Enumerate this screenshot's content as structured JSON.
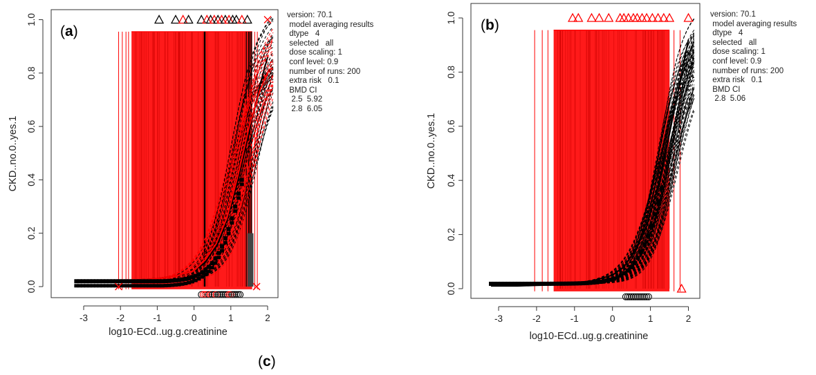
{
  "figure": {
    "panel_c_label": "c"
  },
  "chart_data": [
    {
      "type": "line",
      "panel": "a",
      "xlabel": "log10-ECd..ug.g.creatinine",
      "ylabel": "CKD..no.0..yes.1",
      "xlim": [
        -3.5,
        2.2
      ],
      "ylim": [
        -0.02,
        1.02
      ],
      "xticks": [
        "-3",
        "-2",
        "-1",
        "0",
        "1",
        "2"
      ],
      "yticks": [
        "0.0",
        "0.2",
        "0.4",
        "0.6",
        "0.8",
        "1.0"
      ],
      "series": [
        {
          "color": "#000000",
          "x": [
            -3.2,
            -2.5,
            -2.0,
            -1.5,
            -1.0,
            -0.5,
            0.0,
            0.3,
            0.6,
            0.9,
            1.2,
            1.5,
            1.8,
            2.0
          ],
          "y": [
            0.02,
            0.02,
            0.02,
            0.025,
            0.03,
            0.04,
            0.06,
            0.09,
            0.15,
            0.25,
            0.4,
            0.58,
            0.76,
            0.86
          ]
        },
        {
          "color": "#ff0000",
          "x": [
            -3.2,
            -2.5,
            -2.0,
            -1.5,
            -1.0,
            -0.5,
            0.0,
            0.3,
            0.6,
            0.9,
            1.2,
            1.5,
            1.8,
            2.0
          ],
          "y": [
            0.02,
            0.02,
            0.02,
            0.025,
            0.03,
            0.04,
            0.06,
            0.1,
            0.16,
            0.26,
            0.42,
            0.6,
            0.74,
            0.8
          ]
        }
      ],
      "info": [
        "version: 70.1",
        " model averaging results",
        " dtype   4",
        " selected   all",
        " dose scaling: 1",
        " conf level: 0.9",
        " number of runs: 200",
        " extra risk   0.1",
        " BMD CI",
        "  2.5  5.92",
        "  2.8  6.05"
      ]
    },
    {
      "type": "line",
      "panel": "b",
      "xlabel": "log10-ECd..ug.g.creatinine",
      "ylabel": "CKD..no.0..yes.1",
      "xlim": [
        -3.5,
        2.2
      ],
      "ylim": [
        -0.02,
        1.02
      ],
      "xticks": [
        "-3",
        "-2",
        "-1",
        "0",
        "1",
        "2"
      ],
      "yticks": [
        "0.0",
        "0.2",
        "0.4",
        "0.6",
        "0.8",
        "1.0"
      ],
      "series": [
        {
          "color": "#000000",
          "x": [
            -3.2,
            -2.5,
            -2.0,
            -1.5,
            -1.0,
            -0.5,
            0.0,
            0.3,
            0.6,
            0.9,
            1.2,
            1.5,
            1.8,
            2.0
          ],
          "y": [
            0.01,
            0.01,
            0.012,
            0.014,
            0.02,
            0.03,
            0.05,
            0.08,
            0.14,
            0.23,
            0.38,
            0.57,
            0.78,
            0.92
          ]
        }
      ],
      "info": [
        "version: 70.1",
        " model averaging results",
        " dtype   4",
        " selected   all",
        " dose scaling: 1",
        " conf level: 0.9",
        " number of runs: 200",
        " extra risk   0.1",
        " BMD CI",
        "  2.8  5.06"
      ]
    }
  ]
}
